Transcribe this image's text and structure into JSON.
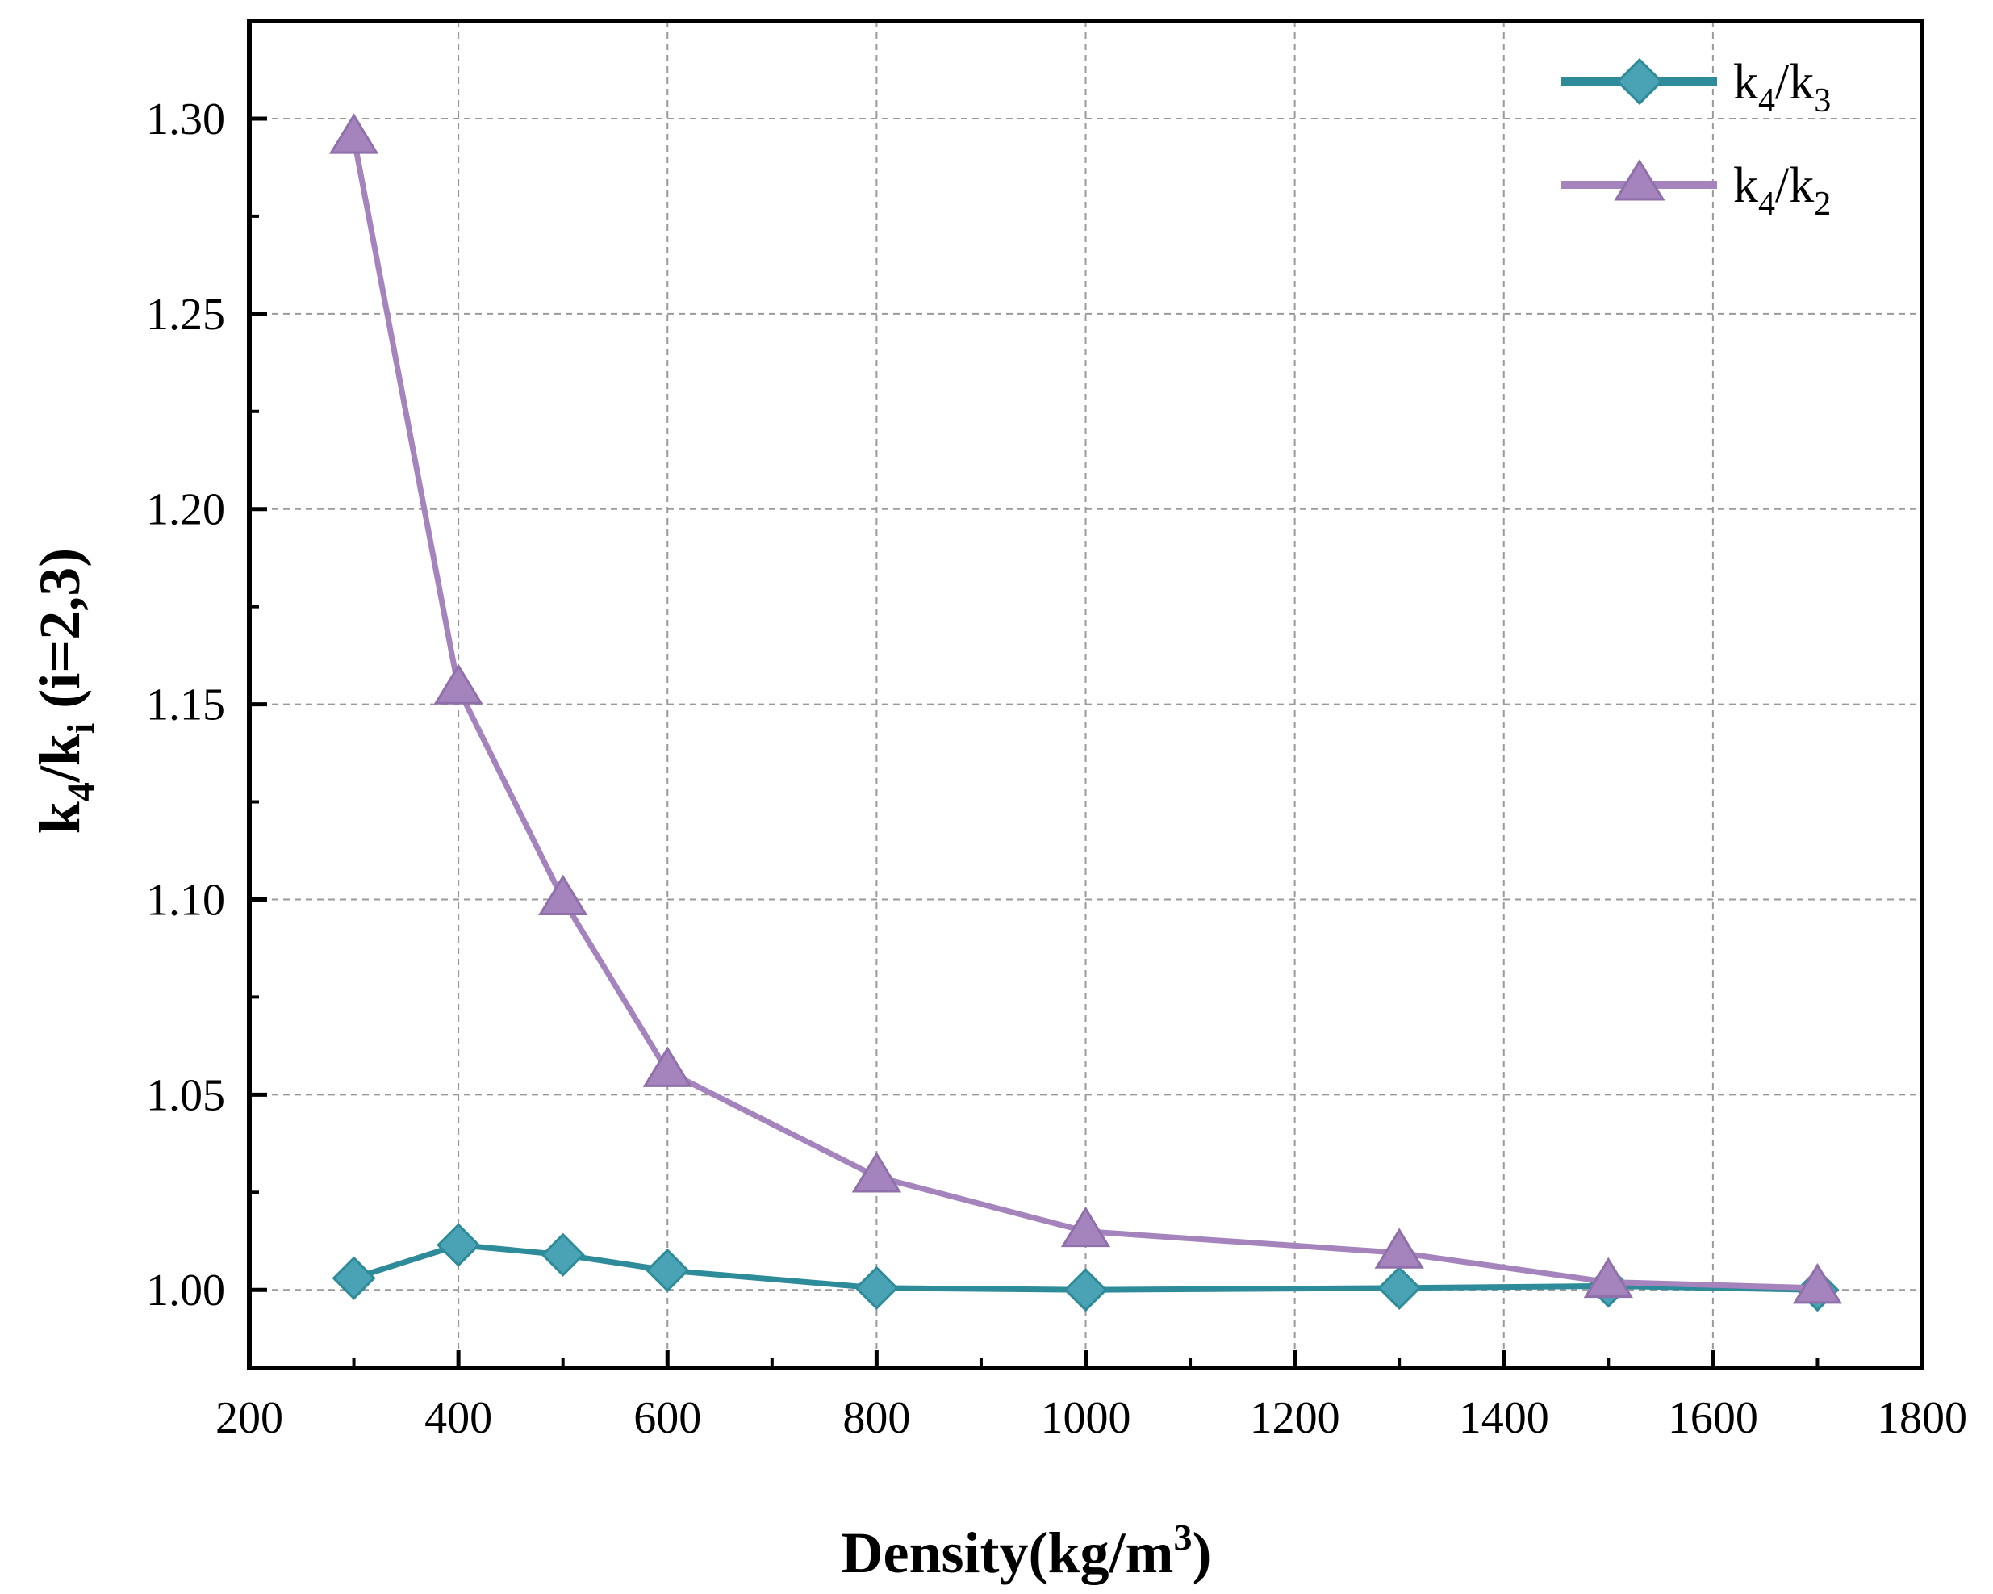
{
  "chart_data": {
    "type": "line",
    "title": "",
    "xlabel": {
      "main": "Density(kg/m",
      "sup": "3",
      "close": ")"
    },
    "ylabel": {
      "k": "k",
      "num_sub": "4",
      "slash": "/k",
      "den_sub": "i",
      "tail": " (i=2,3)"
    },
    "xlim": [
      200,
      1800
    ],
    "ylim": [
      0.98,
      1.325
    ],
    "x_ticks": [
      200,
      400,
      600,
      800,
      1000,
      1200,
      1400,
      1600,
      1800
    ],
    "x_tick_labels": [
      "200",
      "400",
      "600",
      "800",
      "1000",
      "1200",
      "1400",
      "1600",
      "1800"
    ],
    "y_ticks": [
      1.0,
      1.05,
      1.1,
      1.15,
      1.2,
      1.25,
      1.3
    ],
    "y_tick_labels": [
      "1.00",
      "1.05",
      "1.10",
      "1.15",
      "1.20",
      "1.25",
      "1.30"
    ],
    "grid": true,
    "legend_position": "top-right",
    "x": [
      300,
      400,
      500,
      600,
      800,
      1000,
      1300,
      1500,
      1700
    ],
    "series": [
      {
        "name": "k4/k3",
        "label": {
          "k": "k",
          "num_sub": "4",
          "slash": "/k",
          "den_sub": "3"
        },
        "marker": "diamond",
        "color": "#2E8B9A",
        "marker_color": "#4AA3B5",
        "values": [
          1.003,
          1.0115,
          1.009,
          1.005,
          1.0005,
          1.0,
          1.0005,
          1.001,
          1.0
        ]
      },
      {
        "name": "k4/k2",
        "label": {
          "k": "k",
          "num_sub": "4",
          "slash": "/k",
          "den_sub": "2"
        },
        "marker": "triangle",
        "color": "#A583BC",
        "marker_color": "#A583BC",
        "values": [
          1.295,
          1.154,
          1.1,
          1.056,
          1.029,
          1.015,
          1.0095,
          1.002,
          1.0005
        ]
      }
    ]
  }
}
